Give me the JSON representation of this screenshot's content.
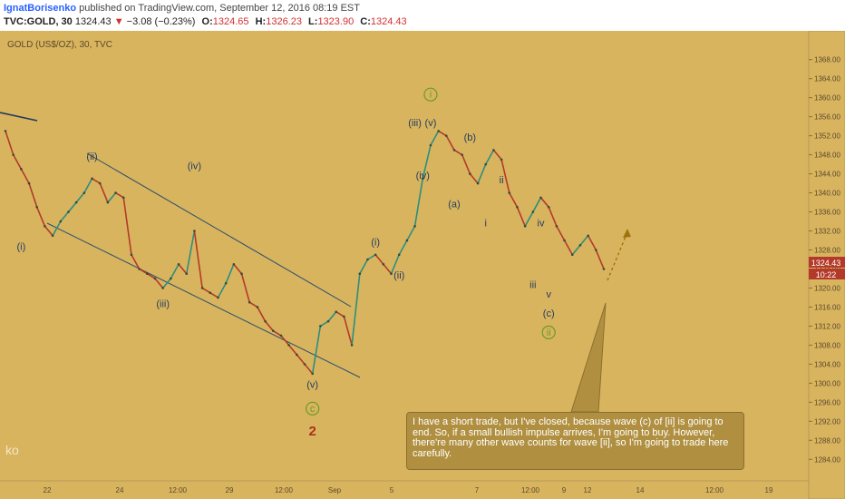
{
  "header": {
    "author": "IgnatBorisenko",
    "published": "published on TradingView.com, September 12, 2016 08:19 EST",
    "symbol": "TVC:GOLD, 30",
    "last": "1324.43",
    "arrow": "▼",
    "change": "−3.08 (−0.23%)",
    "o_label": "O:",
    "o_value": "1324.65",
    "h_label": "H:",
    "h_value": "1326.23",
    "l_label": "L:",
    "l_value": "1323.90",
    "c_label": "C:",
    "c_value": "1324.43"
  },
  "legend": "GOLD (US$/OZ), 30, TVC",
  "watermark": "ko",
  "price_tag": {
    "price": "1324.43",
    "countdown": "10:22"
  },
  "note": "I have a short trade, but I've closed, because wave (c) of [ii] is going to end. So, if a small bullish impulse arrives, I'm going to buy. However, there're many other wave counts for wave [ii], so I'm going to trade here carefully.",
  "colors": {
    "background": "#d9b45f",
    "up": "#2a8f7e",
    "down": "#b33a2a",
    "wave_label": "#1f3a5f",
    "wave_red": "#a8321e",
    "circle_green": "#6a9a2a"
  },
  "chart_data": {
    "type": "line",
    "series": [
      {
        "values": [
          1353,
          1348,
          1345,
          1342,
          1337,
          1333,
          1331,
          1334,
          1336,
          1338,
          1340,
          1343,
          1342,
          1338,
          1340,
          1339,
          1327,
          1324,
          1323,
          1322,
          1320,
          1322,
          1325,
          1323,
          1332,
          1320,
          1319,
          1318,
          1321,
          1325,
          1323,
          1317,
          1316,
          1313,
          1311,
          1310,
          1308,
          1306,
          1304,
          1302,
          1312,
          1313,
          1315,
          1314,
          1308,
          1323,
          1326,
          1327,
          1325,
          1323,
          1327,
          1330,
          1333,
          1343,
          1350,
          1353,
          1352,
          1349,
          1348,
          1344,
          1342,
          1346,
          1349,
          1347,
          1340,
          1337,
          1333,
          1336,
          1339,
          1337,
          1333,
          1330,
          1327,
          1329,
          1331,
          1328,
          1324
        ]
      }
    ],
    "x_ticks": [
      "22",
      "24",
      "12:00",
      "29",
      "12:00",
      "Sep",
      "5",
      "7",
      "12:00",
      "9",
      "12",
      "14",
      "12:00",
      "19"
    ],
    "y_ticks": [
      "1368.00",
      "1364.00",
      "1360.00",
      "1356.00",
      "1352.00",
      "1348.00",
      "1344.00",
      "1340.00",
      "1336.00",
      "1332.00",
      "1328.00",
      "1324.00",
      "1320.00",
      "1316.00",
      "1312.00",
      "1308.00",
      "1304.00",
      "1300.00",
      "1296.00",
      "1292.00",
      "1288.00",
      "1284.00"
    ],
    "ylim": [
      1281,
      1371
    ],
    "grid": false,
    "annotations": {
      "wave_labels": [
        {
          "text": "(i)",
          "x": 2,
          "y": 1328
        },
        {
          "text": "(ii)",
          "x": 11,
          "y": 1347
        },
        {
          "text": "(iii)",
          "x": 20,
          "y": 1316
        },
        {
          "text": "(iv)",
          "x": 24,
          "y": 1345
        },
        {
          "text": "(v)",
          "x": 39,
          "y": 1299
        },
        {
          "text": "c",
          "x": 39,
          "y": 1294,
          "circled": true
        },
        {
          "text": "2",
          "x": 39,
          "y": 1289,
          "red": true
        },
        {
          "text": "(i)",
          "x": 47,
          "y": 1329
        },
        {
          "text": "(ii)",
          "x": 50,
          "y": 1322
        },
        {
          "text": "(iii)",
          "x": 52,
          "y": 1354
        },
        {
          "text": "(v)",
          "x": 54,
          "y": 1354
        },
        {
          "text": "i",
          "x": 54,
          "y": 1360,
          "circled": true
        },
        {
          "text": "(iv)",
          "x": 53,
          "y": 1343
        },
        {
          "text": "(a)",
          "x": 57,
          "y": 1337
        },
        {
          "text": "(b)",
          "x": 59,
          "y": 1351
        },
        {
          "text": "i",
          "x": 61,
          "y": 1333
        },
        {
          "text": "ii",
          "x": 63,
          "y": 1342
        },
        {
          "text": "iv",
          "x": 68,
          "y": 1333
        },
        {
          "text": "iii",
          "x": 67,
          "y": 1320
        },
        {
          "text": "v",
          "x": 69,
          "y": 1318
        },
        {
          "text": "(c)",
          "x": 69,
          "y": 1314
        },
        {
          "text": "ii",
          "x": 69,
          "y": 1310,
          "circled": true
        }
      ]
    }
  }
}
